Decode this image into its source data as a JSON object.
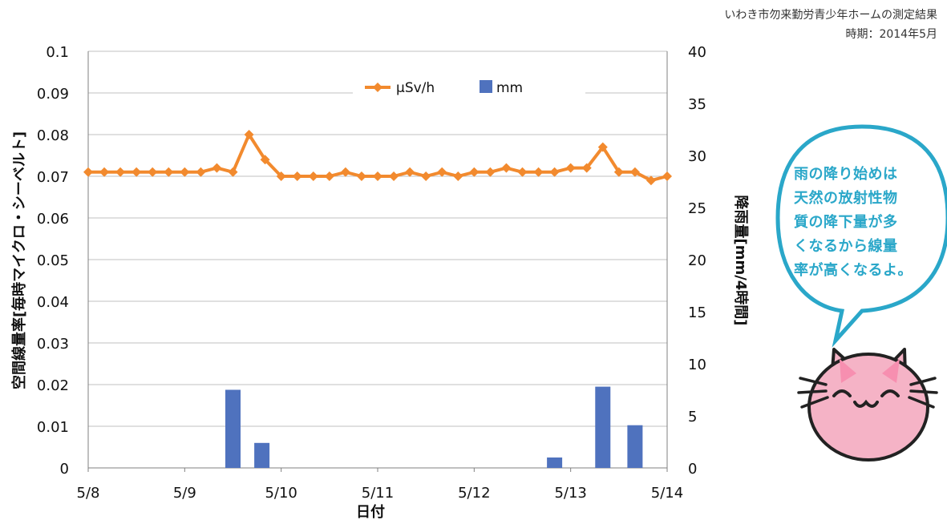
{
  "header": {
    "location": "いわき市勿来勤労青少年ホームの測定結果",
    "period": "時期：2014年5月"
  },
  "bubble": {
    "lines": [
      "雨の降り始めは",
      "天然の放射性物",
      "質の降下量が多",
      "くなるから線量",
      "率が高くなるよ。"
    ]
  },
  "chart_data": {
    "type": "line+bar",
    "xlabel": "日付",
    "x_ticks": [
      "5/8",
      "5/9",
      "5/10",
      "5/11",
      "5/12",
      "5/13",
      "5/14"
    ],
    "y_left": {
      "label": "空間線量率[毎時マイクロ・シーベルト]",
      "ylim": [
        0,
        0.1
      ],
      "ticks": [
        "0",
        "0.01",
        "0.02",
        "0.03",
        "0.04",
        "0.05",
        "0.06",
        "0.07",
        "0.08",
        "0.09",
        "0.1"
      ]
    },
    "y_right": {
      "label": "降雨量[mm/4時間]",
      "ylim": [
        0,
        40
      ],
      "ticks": [
        "0",
        "5",
        "10",
        "15",
        "20",
        "25",
        "30",
        "35",
        "40"
      ]
    },
    "grid": true,
    "legend_position": "top-center",
    "series": [
      {
        "name": "μSv/h",
        "type": "line",
        "axis": "left",
        "color": "#f28a2e",
        "x_days": [
          0,
          0.1667,
          0.3333,
          0.5,
          0.6667,
          0.8333,
          1,
          1.1667,
          1.3333,
          1.5,
          1.6667,
          1.8333,
          2,
          2.1667,
          2.3333,
          2.5,
          2.6667,
          2.8333,
          3,
          3.1667,
          3.3333,
          3.5,
          3.6667,
          3.8333,
          4,
          4.1667,
          4.3333,
          4.5,
          4.6667,
          4.8333,
          5,
          5.1667,
          5.3333,
          5.5,
          5.6667,
          5.8333,
          6
        ],
        "values": [
          0.071,
          0.071,
          0.071,
          0.071,
          0.071,
          0.071,
          0.071,
          0.071,
          0.072,
          0.071,
          0.08,
          0.074,
          0.07,
          0.07,
          0.07,
          0.07,
          0.071,
          0.07,
          0.07,
          0.07,
          0.071,
          0.07,
          0.071,
          0.07,
          0.071,
          0.071,
          0.072,
          0.071,
          0.071,
          0.071,
          0.072,
          0.072,
          0.077,
          0.071,
          0.071,
          0.069,
          0.07
        ]
      },
      {
        "name": "mm",
        "type": "bar",
        "axis": "right",
        "color": "#4f72be",
        "x_days": [
          1.5,
          1.8,
          4.8333,
          5.3333,
          5.6667
        ],
        "values": [
          7.5,
          2.4,
          1.0,
          7.8,
          4.1
        ]
      }
    ]
  },
  "colors": {
    "bubble_border": "#2aa7c9",
    "cat_fill": "#f5b3c6",
    "grid": "#c0c0c0"
  },
  "icons": {
    "mascot": "cat-mascot-icon"
  }
}
